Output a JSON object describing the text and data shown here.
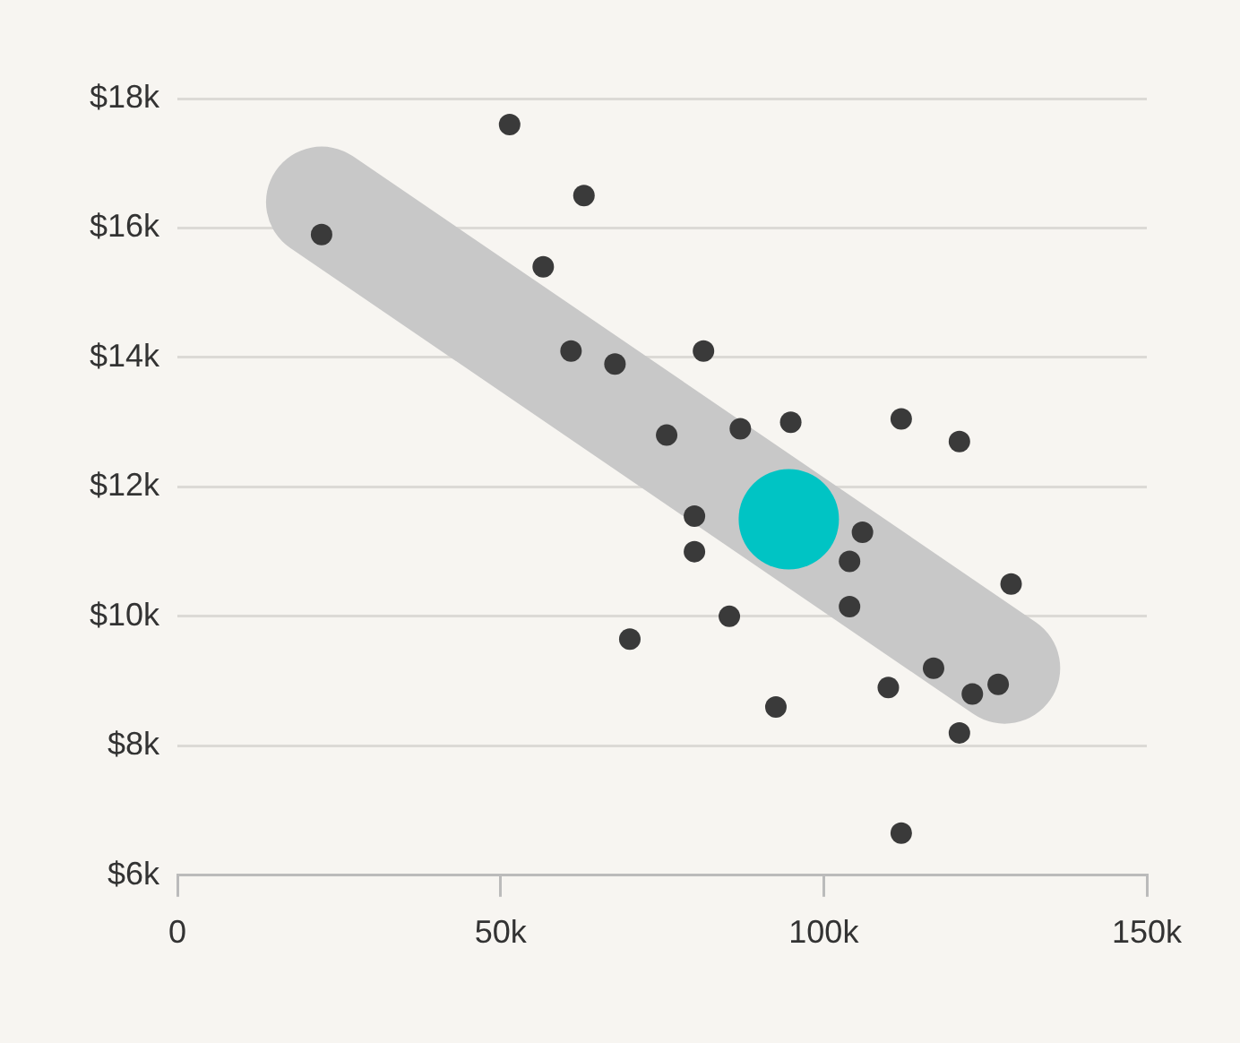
{
  "chart_data": {
    "type": "scatter",
    "grid": "y",
    "marker": "circle",
    "legend": false,
    "xlim": [
      0,
      150000
    ],
    "xticks": [
      {
        "value": 0,
        "label": "0"
      },
      {
        "value": 50000,
        "label": "50k"
      },
      {
        "value": 100000,
        "label": "100k"
      },
      {
        "value": 150000,
        "label": "150k"
      }
    ],
    "ylim": [
      6000,
      18000
    ],
    "yticks": [
      {
        "value": 6000,
        "label": "$6k"
      },
      {
        "value": 8000,
        "label": "$8k"
      },
      {
        "value": 10000,
        "label": "$10k"
      },
      {
        "value": 12000,
        "label": "$12k"
      },
      {
        "value": 14000,
        "label": "$14k"
      },
      {
        "value": 16000,
        "label": "$16k"
      },
      {
        "value": 18000,
        "label": "$18k"
      }
    ],
    "series": [
      {
        "type": "scatter",
        "color": "#3a3a3a",
        "x": [
          22300,
          51400,
          62900,
          56600,
          60900,
          67700,
          81400,
          75700,
          87100,
          94900,
          112000,
          121000,
          80000,
          80000,
          106000,
          104000,
          104000,
          129000,
          85400,
          70000,
          117000,
          110000,
          123000,
          127000,
          121000,
          92600,
          112000
        ],
        "values": [
          15900,
          17600,
          16500,
          15400,
          14100,
          13900,
          14100,
          12800,
          12900,
          13000,
          13050,
          12700,
          11550,
          11000,
          11300,
          10850,
          10150,
          10500,
          10000,
          9650,
          9200,
          8900,
          8800,
          8950,
          8200,
          8600,
          6650
        ]
      },
      {
        "type": "line",
        "marker": "none",
        "color": "#c8c8c8",
        "x": [
          22300,
          128000
        ],
        "values": [
          16400,
          9200
        ]
      },
      {
        "type": "scatter",
        "color": "#00c4c4",
        "x": [
          94600
        ],
        "values": [
          11500
        ]
      }
    ]
  }
}
